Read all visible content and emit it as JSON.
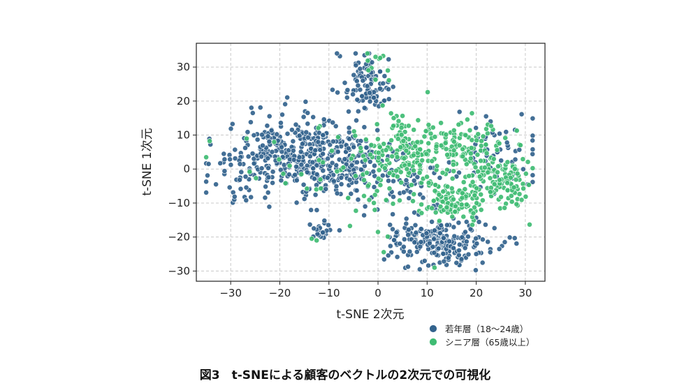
{
  "chart_data": {
    "type": "scatter",
    "title": "",
    "xlabel": "t-SNE 2次元",
    "ylabel": "t-SNE 1次元",
    "xlim": [
      -37,
      34
    ],
    "ylim": [
      -33,
      37
    ],
    "xticks": [
      -30,
      -20,
      -10,
      0,
      10,
      20,
      30
    ],
    "yticks": [
      -30,
      -20,
      -10,
      0,
      10,
      20,
      30
    ],
    "xtick_labels": [
      "−30",
      "−20",
      "−10",
      "0",
      "10",
      "20",
      "30"
    ],
    "ytick_labels": [
      "−30",
      "−20",
      "−10",
      "0",
      "10",
      "20",
      "30"
    ],
    "grid": true,
    "legend_position": "bottom-right",
    "caption": "図3　t-SNEによる顧客のベクトルの2次元での可視化",
    "series": [
      {
        "name": "若年層（18〜24歳）",
        "color": "#33638d",
        "clusters": [
          {
            "cx": -17,
            "cy": 4,
            "sx": 6.5,
            "sy": 5.5,
            "n": 330
          },
          {
            "cx": -6,
            "cy": 1,
            "sx": 4.5,
            "sy": 4.5,
            "n": 150
          },
          {
            "cx": -2.5,
            "cy": 28,
            "sx": 2.5,
            "sy": 3,
            "n": 55
          },
          {
            "cx": -1.5,
            "cy": 21,
            "sx": 2.5,
            "sy": 2,
            "n": 45
          },
          {
            "cx": 13,
            "cy": -21,
            "sx": 6,
            "sy": 3.5,
            "n": 230
          },
          {
            "cx": -11.5,
            "cy": -18.5,
            "sx": 1.5,
            "sy": 1.3,
            "n": 25
          },
          {
            "cx": 24,
            "cy": 4,
            "sx": 5,
            "sy": 6,
            "n": 60
          },
          {
            "cx": 5,
            "cy": -5,
            "sx": 4,
            "sy": 5,
            "n": 45
          },
          {
            "cx": -29,
            "cy": -3,
            "sx": 3,
            "sy": 4,
            "n": 30
          }
        ],
        "outliers": [
          [
            -34.5,
            1.5
          ],
          [
            -33,
            -4.5
          ],
          [
            -25.5,
            16.5
          ],
          [
            -19.5,
            16
          ],
          [
            8.5,
            -29.5
          ],
          [
            9.5,
            -27
          ],
          [
            17,
            -26.5
          ],
          [
            30.5,
            -4.5
          ],
          [
            22,
            15.5
          ],
          [
            20,
            -25
          ]
        ]
      },
      {
        "name": "シニア層（65歳以上）",
        "color": "#3fbc73",
        "clusters": [
          {
            "cx": 4,
            "cy": 6,
            "sx": 3.5,
            "sy": 4,
            "n": 110
          },
          {
            "cx": 18,
            "cy": 6,
            "sx": 4,
            "sy": 4,
            "n": 110
          },
          {
            "cx": 15.5,
            "cy": -9,
            "sx": 3,
            "sy": 3,
            "n": 110
          },
          {
            "cx": 25,
            "cy": -3,
            "sx": 3,
            "sy": 4,
            "n": 110
          },
          {
            "cx": 8,
            "cy": 2,
            "sx": 3,
            "sy": 6,
            "n": 50
          },
          {
            "cx": -1,
            "cy": -5,
            "sx": 3,
            "sy": 8,
            "n": 30
          },
          {
            "cx": -14,
            "cy": 3,
            "sx": 9,
            "sy": 6,
            "n": 24
          },
          {
            "cx": -1,
            "cy": 29,
            "sx": 2,
            "sy": 3,
            "n": 10
          }
        ],
        "outliers": [
          [
            -0.5,
            33
          ],
          [
            2,
            29
          ],
          [
            11.5,
            -29
          ],
          [
            29,
            7
          ],
          [
            0,
            -18.5
          ],
          [
            -13.5,
            -20.5
          ],
          [
            -12.5,
            -21
          ]
        ]
      }
    ]
  }
}
